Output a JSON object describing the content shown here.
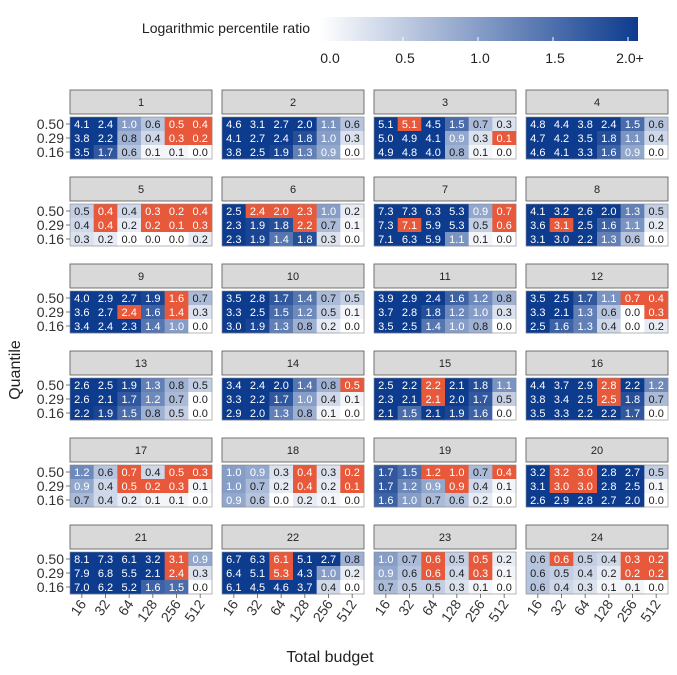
{
  "chart_data": {
    "type": "heatmap",
    "title": "",
    "xlabel": "Total budget",
    "ylabel": "Quantile",
    "x_ticks": [
      "16",
      "32",
      "64",
      "128",
      "256",
      "512"
    ],
    "y_ticks": [
      "0.50",
      "0.29",
      "0.16"
    ],
    "legend": {
      "title": "Logarithmic percentile ratio",
      "ticks": [
        "0.0",
        "0.5",
        "1.0",
        "1.5",
        "2.0+"
      ],
      "range": [
        0,
        2
      ],
      "low_color": "#ffffff",
      "high_color": "#0d3b8e",
      "highlight_color": "#e8583a",
      "placement": "top"
    },
    "panels": [
      {
        "label": "1",
        "values": [
          [
            4.1,
            2.4,
            1.0,
            0.6,
            0.5,
            0.4
          ],
          [
            3.8,
            2.2,
            0.8,
            0.4,
            0.3,
            0.2
          ],
          [
            3.5,
            1.7,
            0.6,
            0.1,
            0.1,
            0.0
          ]
        ],
        "highlight": [
          [
            0,
            4
          ],
          [
            0,
            5
          ],
          [
            1,
            4
          ],
          [
            1,
            5
          ]
        ]
      },
      {
        "label": "2",
        "values": [
          [
            4.6,
            3.1,
            2.7,
            2.0,
            1.1,
            0.6
          ],
          [
            4.1,
            2.7,
            2.4,
            1.8,
            1.0,
            0.3
          ],
          [
            3.8,
            2.5,
            1.9,
            1.3,
            0.9,
            0.0
          ]
        ],
        "highlight": []
      },
      {
        "label": "3",
        "values": [
          [
            5.1,
            5.1,
            4.5,
            1.5,
            0.7,
            0.3
          ],
          [
            5.0,
            4.9,
            4.1,
            0.9,
            0.3,
            0.1
          ],
          [
            4.9,
            4.8,
            4.0,
            0.8,
            0.1,
            0.0
          ]
        ],
        "highlight": [
          [
            0,
            1
          ],
          [
            1,
            5
          ]
        ]
      },
      {
        "label": "4",
        "values": [
          [
            4.8,
            4.4,
            3.8,
            2.4,
            1.5,
            0.6
          ],
          [
            4.7,
            4.2,
            3.5,
            1.8,
            1.1,
            0.4
          ],
          [
            4.6,
            4.1,
            3.3,
            1.6,
            0.9,
            0.0
          ]
        ],
        "highlight": []
      },
      {
        "label": "5",
        "values": [
          [
            0.5,
            0.4,
            0.4,
            0.3,
            0.2,
            0.4
          ],
          [
            0.4,
            0.4,
            0.2,
            0.2,
            0.1,
            0.3
          ],
          [
            0.3,
            0.2,
            0.0,
            0.0,
            0.0,
            0.2
          ]
        ],
        "highlight": [
          [
            0,
            1
          ],
          [
            0,
            3
          ],
          [
            0,
            4
          ],
          [
            0,
            5
          ],
          [
            1,
            1
          ],
          [
            1,
            3
          ],
          [
            1,
            4
          ],
          [
            1,
            5
          ]
        ]
      },
      {
        "label": "6",
        "values": [
          [
            2.5,
            2.4,
            2.0,
            2.3,
            1.0,
            0.2
          ],
          [
            2.3,
            1.9,
            1.8,
            2.2,
            0.7,
            0.1
          ],
          [
            2.3,
            1.9,
            1.4,
            1.8,
            0.3,
            0.0
          ]
        ],
        "highlight": [
          [
            0,
            1
          ],
          [
            0,
            2
          ],
          [
            0,
            3
          ],
          [
            1,
            3
          ]
        ]
      },
      {
        "label": "7",
        "values": [
          [
            7.3,
            7.3,
            6.3,
            5.3,
            0.9,
            0.7
          ],
          [
            7.3,
            7.1,
            5.9,
            5.3,
            0.5,
            0.6
          ],
          [
            7.1,
            6.3,
            5.9,
            1.1,
            0.1,
            0.0
          ]
        ],
        "highlight": [
          [
            0,
            5
          ],
          [
            1,
            1
          ],
          [
            1,
            5
          ]
        ]
      },
      {
        "label": "8",
        "values": [
          [
            4.1,
            3.2,
            2.6,
            2.0,
            1.3,
            0.5
          ],
          [
            3.6,
            3.1,
            2.5,
            1.6,
            1.1,
            0.2
          ],
          [
            3.1,
            3.0,
            2.2,
            1.3,
            0.6,
            0.0
          ]
        ],
        "highlight": [
          [
            1,
            1
          ]
        ]
      },
      {
        "label": "9",
        "values": [
          [
            4.0,
            2.9,
            2.7,
            1.9,
            1.6,
            0.7
          ],
          [
            3.6,
            2.7,
            2.4,
            1.6,
            1.4,
            0.3
          ],
          [
            3.4,
            2.4,
            2.3,
            1.4,
            1.0,
            0.0
          ]
        ],
        "highlight": [
          [
            0,
            4
          ],
          [
            1,
            2
          ],
          [
            1,
            4
          ]
        ]
      },
      {
        "label": "10",
        "values": [
          [
            3.5,
            2.8,
            1.7,
            1.4,
            0.7,
            0.5
          ],
          [
            3.3,
            2.5,
            1.5,
            1.2,
            0.5,
            0.1
          ],
          [
            3.0,
            1.9,
            1.3,
            0.8,
            0.2,
            0.0
          ]
        ],
        "highlight": []
      },
      {
        "label": "11",
        "values": [
          [
            3.9,
            2.9,
            2.4,
            1.6,
            1.2,
            0.8
          ],
          [
            3.7,
            2.8,
            1.8,
            1.2,
            1.0,
            0.3
          ],
          [
            3.5,
            2.5,
            1.4,
            1.0,
            0.8,
            0.0
          ]
        ],
        "highlight": []
      },
      {
        "label": "12",
        "values": [
          [
            3.5,
            2.5,
            1.7,
            1.1,
            0.7,
            0.4
          ],
          [
            3.3,
            2.1,
            1.3,
            0.6,
            0.0,
            0.3
          ],
          [
            2.5,
            1.6,
            1.3,
            0.4,
            0.0,
            0.2
          ]
        ],
        "highlight": [
          [
            0,
            4
          ],
          [
            0,
            5
          ],
          [
            1,
            5
          ]
        ]
      },
      {
        "label": "13",
        "values": [
          [
            2.6,
            2.5,
            1.9,
            1.3,
            0.8,
            0.5
          ],
          [
            2.6,
            2.1,
            1.7,
            1.2,
            0.7,
            0.0
          ],
          [
            2.2,
            1.9,
            1.5,
            0.8,
            0.5,
            0.0
          ]
        ],
        "highlight": []
      },
      {
        "label": "14",
        "values": [
          [
            3.4,
            2.4,
            2.0,
            1.4,
            0.8,
            0.5
          ],
          [
            3.3,
            2.2,
            1.7,
            1.0,
            0.4,
            0.1
          ],
          [
            2.9,
            2.0,
            1.3,
            0.8,
            0.1,
            0.0
          ]
        ],
        "highlight": [
          [
            0,
            5
          ]
        ]
      },
      {
        "label": "15",
        "values": [
          [
            2.5,
            2.2,
            2.2,
            2.1,
            1.8,
            1.1
          ],
          [
            2.3,
            2.1,
            2.1,
            2.0,
            1.7,
            0.5
          ],
          [
            2.1,
            1.5,
            2.1,
            1.9,
            1.6,
            0.0
          ]
        ],
        "highlight": [
          [
            0,
            2
          ],
          [
            1,
            2
          ]
        ]
      },
      {
        "label": "16",
        "values": [
          [
            4.4,
            3.7,
            2.9,
            2.8,
            2.2,
            1.2
          ],
          [
            3.8,
            3.4,
            2.5,
            2.5,
            1.8,
            0.7
          ],
          [
            3.5,
            3.3,
            2.2,
            2.2,
            1.7,
            0.0
          ]
        ],
        "highlight": [
          [
            0,
            3
          ],
          [
            1,
            3
          ]
        ]
      },
      {
        "label": "17",
        "values": [
          [
            1.2,
            0.6,
            0.7,
            0.4,
            0.5,
            0.3
          ],
          [
            0.9,
            0.4,
            0.5,
            0.2,
            0.3,
            0.1
          ],
          [
            0.7,
            0.4,
            0.2,
            0.1,
            0.1,
            0.0
          ]
        ],
        "highlight": [
          [
            0,
            2
          ],
          [
            0,
            4
          ],
          [
            0,
            5
          ],
          [
            1,
            2
          ],
          [
            1,
            3
          ],
          [
            1,
            4
          ]
        ]
      },
      {
        "label": "18",
        "values": [
          [
            1.0,
            0.9,
            0.3,
            0.4,
            0.3,
            0.2
          ],
          [
            1.0,
            0.7,
            0.2,
            0.4,
            0.2,
            0.1
          ],
          [
            0.9,
            0.6,
            0.0,
            0.2,
            0.1,
            0.0
          ]
        ],
        "highlight": [
          [
            0,
            3
          ],
          [
            0,
            5
          ],
          [
            1,
            3
          ],
          [
            1,
            5
          ]
        ]
      },
      {
        "label": "19",
        "values": [
          [
            1.7,
            1.5,
            1.2,
            1.0,
            0.7,
            0.4
          ],
          [
            1.7,
            1.2,
            0.9,
            0.9,
            0.4,
            0.1
          ],
          [
            1.6,
            1.0,
            0.7,
            0.6,
            0.2,
            0.0
          ]
        ],
        "highlight": [
          [
            0,
            2
          ],
          [
            0,
            3
          ],
          [
            0,
            5
          ],
          [
            1,
            3
          ]
        ]
      },
      {
        "label": "20",
        "values": [
          [
            3.2,
            3.2,
            3.0,
            2.8,
            2.7,
            0.5
          ],
          [
            3.1,
            3.0,
            3.0,
            2.8,
            2.5,
            0.1
          ],
          [
            2.6,
            2.9,
            2.8,
            2.7,
            2.0,
            0.0
          ]
        ],
        "highlight": [
          [
            0,
            1
          ],
          [
            0,
            2
          ],
          [
            1,
            1
          ],
          [
            1,
            2
          ]
        ]
      },
      {
        "label": "21",
        "values": [
          [
            8.1,
            7.3,
            6.1,
            3.2,
            3.1,
            0.9
          ],
          [
            7.9,
            6.8,
            5.5,
            2.1,
            2.4,
            0.3
          ],
          [
            7.0,
            6.2,
            5.2,
            1.6,
            1.5,
            0.0
          ]
        ],
        "highlight": [
          [
            0,
            4
          ],
          [
            1,
            4
          ]
        ]
      },
      {
        "label": "22",
        "values": [
          [
            6.7,
            6.3,
            6.1,
            5.1,
            2.7,
            0.8
          ],
          [
            6.4,
            5.1,
            5.3,
            4.3,
            1.0,
            0.2
          ],
          [
            6.1,
            4.5,
            4.6,
            3.7,
            0.4,
            0.0
          ]
        ],
        "highlight": [
          [
            0,
            2
          ],
          [
            1,
            2
          ]
        ]
      },
      {
        "label": "23",
        "values": [
          [
            1.0,
            0.7,
            0.6,
            0.5,
            0.5,
            0.2
          ],
          [
            0.9,
            0.6,
            0.6,
            0.4,
            0.3,
            0.1
          ],
          [
            0.7,
            0.5,
            0.5,
            0.3,
            0.1,
            0.0
          ]
        ],
        "highlight": [
          [
            0,
            2
          ],
          [
            0,
            4
          ],
          [
            1,
            2
          ],
          [
            1,
            4
          ]
        ]
      },
      {
        "label": "24",
        "values": [
          [
            0.6,
            0.6,
            0.5,
            0.4,
            0.3,
            0.2
          ],
          [
            0.6,
            0.5,
            0.4,
            0.2,
            0.2,
            0.2
          ],
          [
            0.6,
            0.4,
            0.3,
            0.1,
            0.1,
            0.0
          ]
        ],
        "highlight": [
          [
            0,
            1
          ],
          [
            0,
            4
          ],
          [
            0,
            5
          ],
          [
            1,
            4
          ],
          [
            1,
            5
          ]
        ]
      }
    ]
  }
}
